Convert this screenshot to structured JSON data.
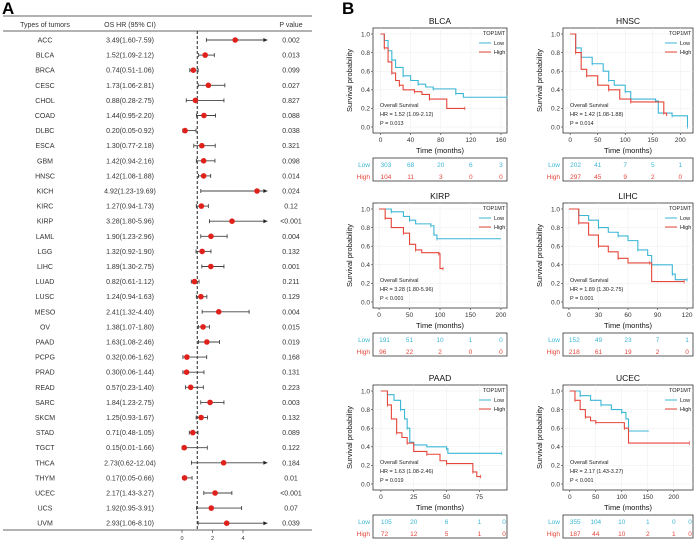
{
  "panel_labels": {
    "a": "A",
    "b": "B"
  },
  "chart_data": [
    {
      "type": "forest",
      "columns": {
        "tumor": "Types of tumors",
        "hr": "OS HR (95% CI)",
        "p": "P value"
      },
      "x_ticks": [
        "0",
        "2",
        "4"
      ],
      "reference_line": 1,
      "point_color": "#e0201b",
      "rows": [
        {
          "tumor": "ACC",
          "hr_text": "3.49(1.60-7.59)",
          "hr": 3.49,
          "lo": 1.6,
          "hi": 7.59,
          "p": "0.002"
        },
        {
          "tumor": "BLCA",
          "hr_text": "1.52(1.09-2.12)",
          "hr": 1.52,
          "lo": 1.09,
          "hi": 2.12,
          "p": "0.013"
        },
        {
          "tumor": "BRCA",
          "hr_text": "0.74(0.51-1.06)",
          "hr": 0.74,
          "lo": 0.51,
          "hi": 1.06,
          "p": "0.099"
        },
        {
          "tumor": "CESC",
          "hr_text": "1.73(1.06-2.81)",
          "hr": 1.73,
          "lo": 1.06,
          "hi": 2.81,
          "p": "0.027"
        },
        {
          "tumor": "CHOL",
          "hr_text": "0.88(0.28-2.75)",
          "hr": 0.88,
          "lo": 0.28,
          "hi": 2.75,
          "p": "0.827"
        },
        {
          "tumor": "COAD",
          "hr_text": "1.44(0.95-2.20)",
          "hr": 1.44,
          "lo": 0.95,
          "hi": 2.2,
          "p": "0.088"
        },
        {
          "tumor": "DLBC",
          "hr_text": "0.20(0.05-0.92)",
          "hr": 0.2,
          "lo": 0.05,
          "hi": 0.92,
          "p": "0.038"
        },
        {
          "tumor": "ESCA",
          "hr_text": "1.30(0.77-2.18)",
          "hr": 1.3,
          "lo": 0.77,
          "hi": 2.18,
          "p": "0.321"
        },
        {
          "tumor": "GBM",
          "hr_text": "1.42(0.94-2.16)",
          "hr": 1.42,
          "lo": 0.94,
          "hi": 2.16,
          "p": "0.098"
        },
        {
          "tumor": "HNSC",
          "hr_text": "1.42(1.08-1.88)",
          "hr": 1.42,
          "lo": 1.08,
          "hi": 1.88,
          "p": "0.014"
        },
        {
          "tumor": "KICH",
          "hr_text": "4.92(1.23-19.69)",
          "hr": 4.92,
          "lo": 1.23,
          "hi": 19.69,
          "p": "0.024"
        },
        {
          "tumor": "KIRC",
          "hr_text": "1.27(0.94-1.73)",
          "hr": 1.27,
          "lo": 0.94,
          "hi": 1.73,
          "p": "0.12"
        },
        {
          "tumor": "KIRP",
          "hr_text": "3.28(1.80-5.96)",
          "hr": 3.28,
          "lo": 1.8,
          "hi": 5.96,
          "p": "<0.001"
        },
        {
          "tumor": "LAML",
          "hr_text": "1.90(1.23-2.96)",
          "hr": 1.9,
          "lo": 1.23,
          "hi": 2.96,
          "p": "0.004"
        },
        {
          "tumor": "LGG",
          "hr_text": "1.32(0.92-1.90)",
          "hr": 1.32,
          "lo": 0.92,
          "hi": 1.9,
          "p": "0.132"
        },
        {
          "tumor": "LIHC",
          "hr_text": "1.89(1.30-2.75)",
          "hr": 1.89,
          "lo": 1.3,
          "hi": 2.75,
          "p": "0.001"
        },
        {
          "tumor": "LUAD",
          "hr_text": "0.82(0.61-1.12)",
          "hr": 0.82,
          "lo": 0.61,
          "hi": 1.12,
          "p": "0.211"
        },
        {
          "tumor": "LUSC",
          "hr_text": "1.24(0.94-1.63)",
          "hr": 1.24,
          "lo": 0.94,
          "hi": 1.63,
          "p": "0.129"
        },
        {
          "tumor": "MESO",
          "hr_text": "2.41(1.32-4.40)",
          "hr": 2.41,
          "lo": 1.32,
          "hi": 4.4,
          "p": "0.004"
        },
        {
          "tumor": "OV",
          "hr_text": "1.38(1.07-1.80)",
          "hr": 1.38,
          "lo": 1.07,
          "hi": 1.8,
          "p": "0.015"
        },
        {
          "tumor": "PAAD",
          "hr_text": "1.63(1.08-2.46)",
          "hr": 1.63,
          "lo": 1.08,
          "hi": 2.46,
          "p": "0.019"
        },
        {
          "tumor": "PCPG",
          "hr_text": "0.32(0.06-1.62)",
          "hr": 0.32,
          "lo": 0.06,
          "hi": 1.62,
          "p": "0.168"
        },
        {
          "tumor": "PRAD",
          "hr_text": "0.30(0.06-1.44)",
          "hr": 0.3,
          "lo": 0.06,
          "hi": 1.44,
          "p": "0.131"
        },
        {
          "tumor": "READ",
          "hr_text": "0.57(0.23-1.40)",
          "hr": 0.57,
          "lo": 0.23,
          "hi": 1.4,
          "p": "0.223"
        },
        {
          "tumor": "SARC",
          "hr_text": "1.84(1.23-2.75)",
          "hr": 1.84,
          "lo": 1.23,
          "hi": 2.75,
          "p": "0.003"
        },
        {
          "tumor": "SKCM",
          "hr_text": "1.25(0.93-1.67)",
          "hr": 1.25,
          "lo": 0.93,
          "hi": 1.67,
          "p": "0.132"
        },
        {
          "tumor": "STAD",
          "hr_text": "0.71(0.48-1.05)",
          "hr": 0.71,
          "lo": 0.48,
          "hi": 1.05,
          "p": "0.089"
        },
        {
          "tumor": "TGCT",
          "hr_text": "0.15(0.01-1.66)",
          "hr": 0.15,
          "lo": 0.01,
          "hi": 1.66,
          "p": "0.122"
        },
        {
          "tumor": "THCA",
          "hr_text": "2.73(0.62-12.04)",
          "hr": 2.73,
          "lo": 0.62,
          "hi": 12.04,
          "p": "0.184"
        },
        {
          "tumor": "THYM",
          "hr_text": "0.17(0.05-0.66)",
          "hr": 0.17,
          "lo": 0.05,
          "hi": 0.66,
          "p": "0.01"
        },
        {
          "tumor": "UCEC",
          "hr_text": "2.17(1.43-3.27)",
          "hr": 2.17,
          "lo": 1.43,
          "hi": 3.27,
          "p": "<0.001"
        },
        {
          "tumor": "UCS",
          "hr_text": "1.92(0.95-3.91)",
          "hr": 1.92,
          "lo": 0.95,
          "hi": 3.91,
          "p": "0.07"
        },
        {
          "tumor": "UVM",
          "hr_text": "2.93(1.06-8.10)",
          "hr": 2.93,
          "lo": 1.06,
          "hi": 8.1,
          "p": "0.039"
        }
      ]
    },
    {
      "type": "km",
      "common": {
        "ylabel": "Survival probability",
        "xlabel": "Time (months)",
        "y_ticks": [
          "0.0",
          "0.2",
          "0.4",
          "0.6",
          "0.8",
          "1.0"
        ],
        "legend_title": "TOP1MT",
        "group_low": "Low",
        "group_high": "High",
        "annotation_title": "Overall Survival",
        "colors": {
          "low": "#3cb6d5",
          "high": "#e5463a"
        }
      },
      "panels": [
        {
          "title": "BLCA",
          "x_ticks": [
            0,
            40,
            80,
            120,
            160
          ],
          "hr": "HR = 1.52 (1.09-2.12)",
          "p": "P = 0.013",
          "risk_low": [
            "303",
            "68",
            "20",
            "6",
            "3"
          ],
          "risk_high": [
            "104",
            "11",
            "3",
            "0",
            "0"
          ],
          "low": [
            [
              0,
              1
            ],
            [
              5,
              0.93
            ],
            [
              10,
              0.82
            ],
            [
              15,
              0.72
            ],
            [
              20,
              0.64
            ],
            [
              30,
              0.55
            ],
            [
              40,
              0.5
            ],
            [
              50,
              0.46
            ],
            [
              60,
              0.43
            ],
            [
              70,
              0.41
            ],
            [
              90,
              0.41
            ],
            [
              100,
              0.36
            ],
            [
              110,
              0.32
            ],
            [
              168,
              0.32
            ]
          ],
          "high": [
            [
              0,
              1
            ],
            [
              5,
              0.85
            ],
            [
              10,
              0.7
            ],
            [
              15,
              0.58
            ],
            [
              20,
              0.5
            ],
            [
              25,
              0.45
            ],
            [
              30,
              0.4
            ],
            [
              45,
              0.38
            ],
            [
              55,
              0.35
            ],
            [
              65,
              0.3
            ],
            [
              88,
              0.2
            ],
            [
              112,
              0.2
            ]
          ]
        },
        {
          "title": "HNSC",
          "x_ticks": [
            0,
            50,
            100,
            150,
            200
          ],
          "hr": "HR = 1.42 (1.08-1.88)",
          "p": "P = 0.014",
          "risk_low": [
            "202",
            "41",
            "7",
            "5",
            "1"
          ],
          "risk_high": [
            "297",
            "45",
            "9",
            "2",
            "0"
          ],
          "low": [
            [
              0,
              1
            ],
            [
              10,
              0.85
            ],
            [
              20,
              0.75
            ],
            [
              40,
              0.68
            ],
            [
              60,
              0.6
            ],
            [
              70,
              0.5
            ],
            [
              80,
              0.45
            ],
            [
              100,
              0.38
            ],
            [
              110,
              0.3
            ],
            [
              155,
              0.28
            ],
            [
              160,
              0.15
            ],
            [
              185,
              0.12
            ],
            [
              213,
              0.12
            ],
            [
              213,
              0
            ]
          ],
          "high": [
            [
              0,
              1
            ],
            [
              10,
              0.8
            ],
            [
              20,
              0.62
            ],
            [
              30,
              0.55
            ],
            [
              50,
              0.45
            ],
            [
              70,
              0.4
            ],
            [
              90,
              0.3
            ],
            [
              110,
              0.27
            ],
            [
              150,
              0.27
            ],
            [
              170,
              0.15
            ],
            [
              175,
              0.12
            ]
          ]
        },
        {
          "title": "KIRP",
          "x_ticks": [
            0,
            50,
            100,
            150,
            200
          ],
          "hr": "HR = 3.28 (1.80-5.96)",
          "p": "P < 0.001",
          "risk_low": [
            "191",
            "51",
            "10",
            "1",
            "0"
          ],
          "risk_high": [
            "96",
            "22",
            "2",
            "0",
            "0"
          ],
          "low": [
            [
              0,
              1
            ],
            [
              20,
              0.97
            ],
            [
              40,
              0.92
            ],
            [
              50,
              0.88
            ],
            [
              60,
              0.84
            ],
            [
              85,
              0.82
            ],
            [
              90,
              0.72
            ],
            [
              95,
              0.68
            ],
            [
              200,
              0.68
            ]
          ],
          "high": [
            [
              0,
              1
            ],
            [
              10,
              0.9
            ],
            [
              20,
              0.8
            ],
            [
              40,
              0.74
            ],
            [
              50,
              0.62
            ],
            [
              60,
              0.56
            ],
            [
              70,
              0.53
            ],
            [
              98,
              0.52
            ],
            [
              100,
              0.36
            ],
            [
              105,
              0.36
            ]
          ]
        },
        {
          "title": "LIHC",
          "x_ticks": [
            0,
            30,
            60,
            90,
            120
          ],
          "hr": "HR = 1.89 (1.30-2.75)",
          "p": "P = 0.001",
          "risk_low": [
            "152",
            "49",
            "23",
            "7",
            "1"
          ],
          "risk_high": [
            "218",
            "61",
            "19",
            "2",
            "0"
          ],
          "low": [
            [
              0,
              1
            ],
            [
              10,
              0.93
            ],
            [
              20,
              0.88
            ],
            [
              30,
              0.8
            ],
            [
              40,
              0.75
            ],
            [
              50,
              0.71
            ],
            [
              60,
              0.66
            ],
            [
              70,
              0.56
            ],
            [
              80,
              0.5
            ],
            [
              84,
              0.4
            ],
            [
              95,
              0.4
            ],
            [
              105,
              0.3
            ],
            [
              108,
              0.24
            ],
            [
              120,
              0.24
            ]
          ],
          "high": [
            [
              0,
              1
            ],
            [
              10,
              0.85
            ],
            [
              20,
              0.72
            ],
            [
              30,
              0.6
            ],
            [
              40,
              0.54
            ],
            [
              50,
              0.47
            ],
            [
              60,
              0.42
            ],
            [
              82,
              0.42
            ],
            [
              84,
              0.22
            ],
            [
              117,
              0.22
            ]
          ]
        },
        {
          "title": "PAAD",
          "x_ticks": [
            0,
            25,
            50,
            75
          ],
          "risk_x": [
            0,
            25,
            50,
            75,
            100
          ],
          "hr": "HR = 1.63 (1.08-2.46)",
          "p": "P = 0.019",
          "risk_low": [
            "105",
            "20",
            "6",
            "1",
            "0"
          ],
          "risk_high": [
            "72",
            "12",
            "5",
            "1",
            "0"
          ],
          "low": [
            [
              0,
              1
            ],
            [
              5,
              0.96
            ],
            [
              10,
              0.9
            ],
            [
              15,
              0.8
            ],
            [
              18,
              0.7
            ],
            [
              20,
              0.6
            ],
            [
              22,
              0.45
            ],
            [
              25,
              0.42
            ],
            [
              35,
              0.4
            ],
            [
              50,
              0.38
            ],
            [
              51,
              0.33
            ],
            [
              92,
              0.33
            ]
          ],
          "high": [
            [
              0,
              1
            ],
            [
              5,
              0.85
            ],
            [
              8,
              0.7
            ],
            [
              12,
              0.55
            ],
            [
              16,
              0.5
            ],
            [
              20,
              0.44
            ],
            [
              25,
              0.35
            ],
            [
              35,
              0.32
            ],
            [
              45,
              0.25
            ],
            [
              50,
              0.22
            ],
            [
              68,
              0.22
            ],
            [
              70,
              0.13
            ],
            [
              73,
              0.08
            ],
            [
              76,
              0.08
            ]
          ]
        },
        {
          "title": "UCEC",
          "x_ticks": [
            0,
            50,
            100,
            150,
            200
          ],
          "risk_x": [
            0,
            50,
            100,
            150,
            200,
            250
          ],
          "hr": "HR = 2.17 (1.43-3.27)",
          "p": "P < 0.001",
          "risk_low": [
            "355",
            "104",
            "10",
            "1",
            "0",
            "0"
          ],
          "risk_high": [
            "187",
            "44",
            "10",
            "2",
            "1",
            "0"
          ],
          "low": [
            [
              0,
              1
            ],
            [
              20,
              0.95
            ],
            [
              40,
              0.9
            ],
            [
              60,
              0.85
            ],
            [
              80,
              0.8
            ],
            [
              100,
              0.77
            ],
            [
              108,
              0.7
            ],
            [
              113,
              0.57
            ],
            [
              152,
              0.57
            ]
          ],
          "high": [
            [
              0,
              1
            ],
            [
              10,
              0.9
            ],
            [
              20,
              0.8
            ],
            [
              30,
              0.72
            ],
            [
              40,
              0.68
            ],
            [
              50,
              0.66
            ],
            [
              100,
              0.66
            ],
            [
              105,
              0.6
            ],
            [
              113,
              0.44
            ],
            [
              230,
              0.44
            ]
          ]
        }
      ]
    }
  ]
}
